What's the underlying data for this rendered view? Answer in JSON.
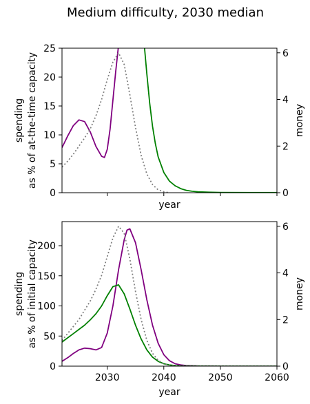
{
  "figure": {
    "title": "Medium difficulty, 2030 median"
  },
  "colors": {
    "purple": "#800080",
    "green": "#008000",
    "dotted": "#808080"
  },
  "chart_data": [
    {
      "type": "line",
      "title": "",
      "xlabel": "year",
      "ylabel_left_lines": [
        "spending",
        "as % of at-the-time capacity"
      ],
      "ylabel_right": "money",
      "xlim": [
        2022,
        2060
      ],
      "ylim_left": [
        0,
        25
      ],
      "ylim_right": [
        0,
        6.2
      ],
      "xticks": [
        2030,
        2040,
        2050,
        2060
      ],
      "show_xticklabels": false,
      "yticks_left": [
        0,
        5,
        10,
        15,
        20,
        25
      ],
      "yticks_right": [
        0,
        2,
        4,
        6
      ],
      "grid": false,
      "legend": "none",
      "series": [
        {
          "color_key": "purple",
          "axis": "left",
          "style": "solid",
          "x": [
            2022,
            2023,
            2024,
            2025,
            2026,
            2027,
            2028,
            2029,
            2029.5,
            2030,
            2030.5,
            2031,
            2031.5,
            2032
          ],
          "y": [
            7.8,
            9.8,
            11.6,
            12.6,
            12.3,
            10.5,
            8.0,
            6.3,
            6.1,
            7.5,
            11.0,
            16.0,
            21.0,
            25.5
          ]
        },
        {
          "color_key": "green",
          "axis": "left",
          "style": "solid",
          "x": [
            2036.5,
            2037,
            2037.5,
            2038,
            2038.5,
            2039,
            2040,
            2041,
            2042,
            2043,
            2044,
            2045,
            2046,
            2048,
            2050,
            2055,
            2060
          ],
          "y": [
            26,
            20.5,
            15.5,
            11.5,
            8.5,
            6.2,
            3.5,
            2.0,
            1.2,
            0.7,
            0.4,
            0.25,
            0.15,
            0.08,
            0.05,
            0.02,
            0.02
          ]
        },
        {
          "color_key": "dotted",
          "axis": "right",
          "style": "dotted",
          "x": [
            2022,
            2023,
            2024,
            2025,
            2026,
            2027,
            2028,
            2029,
            2030,
            2031,
            2032,
            2033,
            2034,
            2035,
            2036,
            2037,
            2038,
            2039,
            2040,
            2041
          ],
          "y": [
            1.1,
            1.35,
            1.65,
            2.0,
            2.35,
            2.75,
            3.3,
            4.0,
            4.85,
            5.6,
            6.0,
            5.5,
            4.2,
            2.8,
            1.6,
            0.8,
            0.35,
            0.12,
            0.04,
            0.0
          ]
        }
      ]
    },
    {
      "type": "line",
      "title": "",
      "xlabel": "year",
      "ylabel_left_lines": [
        "spending",
        "as % of initial capacity"
      ],
      "ylabel_right": "money",
      "xlim": [
        2022,
        2060
      ],
      "ylim_left": [
        0,
        240
      ],
      "ylim_right": [
        0,
        6.2
      ],
      "xticks": [
        2030,
        2040,
        2050,
        2060
      ],
      "show_xticklabels": true,
      "yticks_left": [
        0,
        50,
        100,
        150,
        200
      ],
      "yticks_right": [
        0,
        2,
        4,
        6
      ],
      "grid": false,
      "legend": "none",
      "series": [
        {
          "color_key": "purple",
          "axis": "left",
          "style": "solid",
          "x": [
            2022,
            2023,
            2024,
            2025,
            2026,
            2027,
            2028,
            2029,
            2030,
            2031,
            2032,
            2033,
            2033.5,
            2034,
            2035,
            2036,
            2037,
            2038,
            2039,
            2040,
            2041,
            2042,
            2043,
            2044,
            2046,
            2050,
            2055,
            2060
          ],
          "y": [
            8,
            14,
            21,
            27,
            30,
            29,
            27,
            31,
            55,
            100,
            160,
            210,
            226,
            228,
            205,
            160,
            110,
            68,
            38,
            19,
            9,
            4,
            2,
            1,
            0.3,
            0.1,
            0,
            0
          ]
        },
        {
          "color_key": "green",
          "axis": "left",
          "style": "solid",
          "x": [
            2022,
            2023,
            2024,
            2025,
            2026,
            2027,
            2028,
            2029,
            2030,
            2031,
            2032,
            2033,
            2034,
            2035,
            2036,
            2037,
            2038,
            2039,
            2040,
            2041,
            2042,
            2043,
            2044,
            2046,
            2050,
            2060
          ],
          "y": [
            40,
            47,
            54,
            61,
            68,
            77,
            87,
            100,
            117,
            132,
            135,
            120,
            95,
            68,
            45,
            27,
            15,
            8,
            4,
            2,
            1,
            0.5,
            0.2,
            0.1,
            0,
            0
          ]
        },
        {
          "color_key": "dotted",
          "axis": "right",
          "style": "dotted",
          "x": [
            2022,
            2023,
            2024,
            2025,
            2026,
            2027,
            2028,
            2029,
            2030,
            2031,
            2032,
            2033,
            2034,
            2035,
            2036,
            2037,
            2038,
            2039,
            2040,
            2041,
            2042,
            2044,
            2046,
            2050,
            2060
          ],
          "y": [
            1.1,
            1.4,
            1.7,
            2.0,
            2.4,
            2.8,
            3.3,
            3.9,
            4.7,
            5.5,
            6.0,
            5.7,
            4.6,
            3.2,
            2.0,
            1.1,
            0.55,
            0.25,
            0.1,
            0.04,
            0.02,
            0,
            0,
            0,
            0
          ]
        }
      ]
    }
  ]
}
